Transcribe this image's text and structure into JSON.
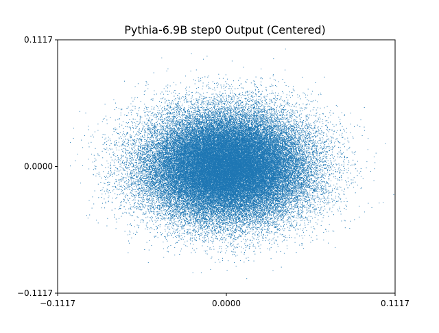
{
  "chart_data": {
    "type": "scatter",
    "title": "Pythia-6.9B step0 Output (Centered)",
    "xlabel": "",
    "ylabel": "",
    "xlim": [
      -0.1117,
      0.1117
    ],
    "ylim": [
      -0.1117,
      0.1117
    ],
    "x_ticks": [
      -0.1117,
      0.0,
      0.1117
    ],
    "y_ticks": [
      -0.1117,
      0.0,
      0.1117
    ],
    "x_tick_labels": [
      "−0.1117",
      "0.0000",
      "0.1117"
    ],
    "y_tick_labels": [
      "−0.1117",
      "0.0000",
      "0.1117"
    ],
    "grid": false,
    "legend": "none",
    "marker_color": "#1f77b4",
    "distribution": {
      "description_type": "gaussian-cloud",
      "center": [
        0.0,
        0.0
      ],
      "std_x": 0.027,
      "std_y": 0.024,
      "count": 60000
    }
  }
}
